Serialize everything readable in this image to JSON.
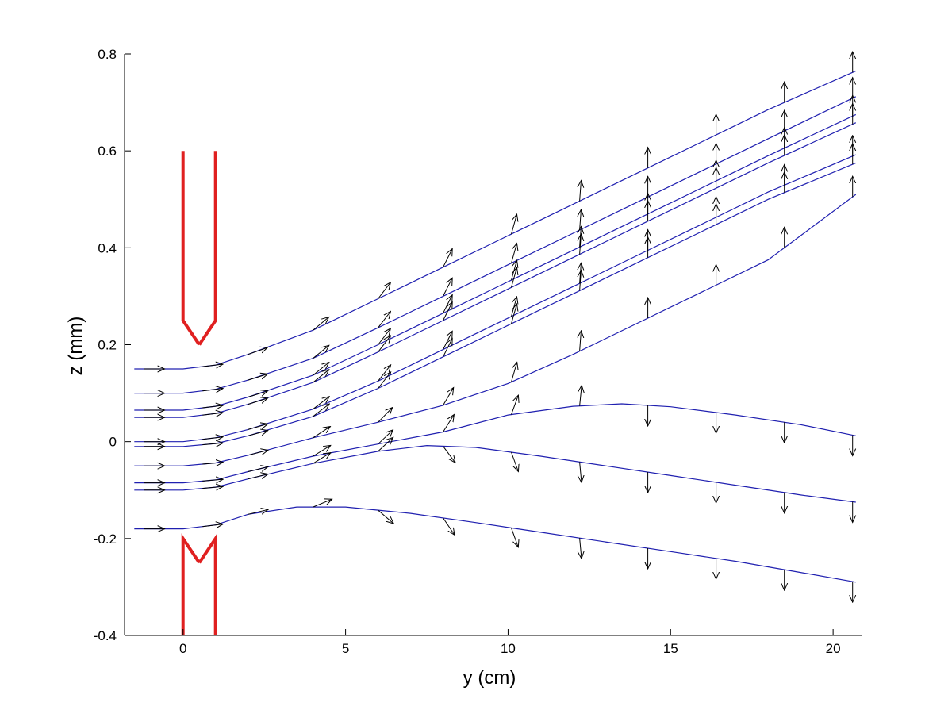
{
  "chart_data": {
    "type": "line",
    "title": "",
    "xlabel": "y (cm)",
    "ylabel": "z (mm)",
    "xlim": [
      -1.8,
      20.9
    ],
    "ylim": [
      -0.4,
      0.8
    ],
    "x_ticks": [
      0,
      5,
      10,
      15,
      20
    ],
    "x_tick_labels": [
      "0",
      "5",
      "10",
      "15",
      "20"
    ],
    "y_ticks": [
      -0.4,
      -0.2,
      0,
      0.2,
      0.4,
      0.6,
      0.8
    ],
    "y_tick_labels": [
      "-0.4",
      "-0.2",
      "0",
      "0.2",
      "0.4",
      "0.6",
      "0.8"
    ],
    "grid": false,
    "legend": "none",
    "colors": {
      "trajectory": "#2020b0",
      "arrow": "#000000",
      "nozzle": "#e02020",
      "axis": "#000000"
    },
    "series": [
      {
        "x": [
          -1.5,
          0,
          1,
          2,
          4,
          6,
          8,
          10,
          12,
          14,
          16,
          18,
          20.7
        ],
        "y": [
          0.15,
          0.15,
          0.158,
          0.18,
          0.23,
          0.295,
          0.36,
          0.425,
          0.49,
          0.555,
          0.62,
          0.685,
          0.765
        ]
      },
      {
        "x": [
          -1.5,
          0,
          1,
          2,
          4,
          6,
          8,
          10,
          12,
          14,
          16,
          18,
          20.7
        ],
        "y": [
          0.1,
          0.1,
          0.108,
          0.127,
          0.172,
          0.235,
          0.3,
          0.365,
          0.43,
          0.495,
          0.56,
          0.625,
          0.712
        ]
      },
      {
        "x": [
          -1.5,
          0,
          1,
          2,
          4,
          6,
          8,
          10,
          12,
          14,
          16,
          18,
          20.7
        ],
        "y": [
          0.065,
          0.065,
          0.073,
          0.092,
          0.137,
          0.2,
          0.265,
          0.33,
          0.395,
          0.46,
          0.525,
          0.59,
          0.675
        ]
      },
      {
        "x": [
          -1.5,
          0,
          1,
          2,
          4,
          6,
          8,
          10,
          12,
          14,
          16,
          18,
          20.7
        ],
        "y": [
          0.05,
          0.05,
          0.058,
          0.077,
          0.122,
          0.185,
          0.25,
          0.315,
          0.38,
          0.445,
          0.51,
          0.575,
          0.658
        ]
      },
      {
        "x": [
          -1.5,
          0,
          1,
          2,
          4,
          6,
          8,
          10,
          12,
          14,
          16,
          18,
          20.7
        ],
        "y": [
          0.0,
          0.0,
          0.008,
          0.025,
          0.067,
          0.125,
          0.19,
          0.255,
          0.32,
          0.385,
          0.45,
          0.515,
          0.592
        ]
      },
      {
        "x": [
          -1.5,
          0,
          1,
          2,
          4,
          6,
          8,
          10,
          12,
          14,
          16,
          18,
          20.7
        ],
        "y": [
          -0.01,
          -0.01,
          -0.004,
          0.012,
          0.052,
          0.11,
          0.175,
          0.24,
          0.305,
          0.37,
          0.435,
          0.5,
          0.575
        ]
      },
      {
        "x": [
          -1.5,
          0,
          1,
          2,
          4,
          6,
          8,
          10,
          12,
          14,
          16,
          18,
          20.7
        ],
        "y": [
          -0.05,
          -0.05,
          -0.044,
          -0.028,
          0.008,
          0.04,
          0.075,
          0.12,
          0.18,
          0.245,
          0.31,
          0.375,
          0.51
        ]
      },
      {
        "x": [
          -1.5,
          0,
          1,
          2,
          4,
          6,
          8,
          10,
          12,
          13.5,
          15,
          17,
          19,
          20.7
        ],
        "y": [
          -0.085,
          -0.085,
          -0.079,
          -0.062,
          -0.03,
          -0.005,
          0.02,
          0.055,
          0.073,
          0.078,
          0.072,
          0.055,
          0.035,
          0.012
        ]
      },
      {
        "x": [
          -1.5,
          0,
          1,
          2,
          4,
          6,
          7.5,
          9,
          11,
          13,
          15,
          17,
          19,
          20.7
        ],
        "y": [
          -0.1,
          -0.1,
          -0.094,
          -0.077,
          -0.045,
          -0.02,
          -0.008,
          -0.012,
          -0.03,
          -0.05,
          -0.07,
          -0.09,
          -0.11,
          -0.125
        ]
      },
      {
        "x": [
          -1.5,
          0,
          1,
          2,
          3.5,
          5,
          7,
          9,
          11,
          13,
          15,
          17,
          19,
          20.7
        ],
        "y": [
          -0.18,
          -0.18,
          -0.172,
          -0.15,
          -0.135,
          -0.135,
          -0.148,
          -0.167,
          -0.187,
          -0.207,
          -0.227,
          -0.247,
          -0.27,
          -0.29
        ]
      }
    ],
    "nozzle": {
      "upper_left": {
        "x": [
          0,
          0,
          0.5
        ],
        "y": [
          0.6,
          0.25,
          0.2
        ]
      },
      "upper_right": {
        "x": [
          1,
          1,
          0.5
        ],
        "y": [
          0.6,
          0.25,
          0.2
        ]
      },
      "lower_left": {
        "x": [
          0,
          0,
          0.5
        ],
        "y": [
          -0.4,
          -0.2,
          -0.25
        ]
      },
      "lower_right": {
        "x": [
          1,
          1,
          0.5
        ],
        "y": [
          -0.4,
          -0.2,
          -0.25
        ]
      }
    },
    "arrow_x": [
      -1.2,
      0.6,
      2.0,
      4.0,
      6.0,
      8.0,
      10.1,
      12.2,
      14.3,
      16.4,
      18.5,
      20.6
    ]
  }
}
